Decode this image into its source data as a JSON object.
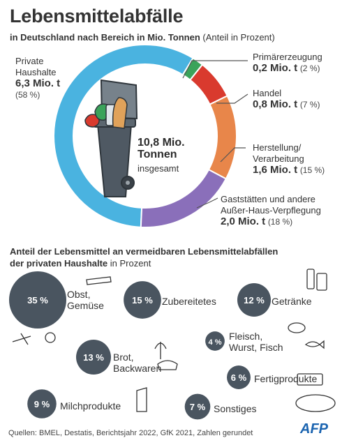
{
  "title": "Lebensmittelabfälle",
  "subtitle_bold": "in Deutschland nach Bereich in Mio. Tonnen",
  "subtitle_rest": " (Anteil in Prozent)",
  "center_value_1": "10,8 Mio.",
  "center_value_2": "Tonnen",
  "center_sub": "insgesamt",
  "section_title_bold": "Anteil der Lebensmittel an vermeidbaren Lebensmittelabfällen",
  "section_title_bold_2": "der privaten Haushalte",
  "section_title_rest": " in Prozent",
  "footer": "Quellen: BMEL, Destatis, Berichtsjahr 2022, GfK 2021, Zahlen gerundet",
  "logo": "AFP",
  "colors": {
    "private": "#4ab3e0",
    "primaer": "#3aa35a",
    "handel": "#d93a2e",
    "herstellung": "#e8864a",
    "gastro": "#8a6fba",
    "bubble": "#4a5560"
  },
  "chart_data": [
    {
      "type": "pie",
      "title": "Lebensmittelabfälle",
      "unit": "Mio. t",
      "total": 10.8,
      "segments": [
        {
          "name": "Private Haushalte",
          "value": 6.3,
          "value_label": "6,3 Mio. t",
          "share_label": "(58 %)",
          "share": 58
        },
        {
          "name": "Primärerzeugung",
          "value": 0.2,
          "value_label": "0,2 Mio. t",
          "share_label": "(2 %)",
          "share": 2
        },
        {
          "name": "Handel",
          "value": 0.8,
          "value_label": "0,8 Mio. t",
          "share_label": "(7 %)",
          "share": 7
        },
        {
          "name": "Herstellung/ Verarbeitung",
          "value": 1.6,
          "value_label": "1,6 Mio. t",
          "share_label": "(15 %)",
          "share": 15
        },
        {
          "name": "Gaststätten und andere Außer-Haus-Verpflegung",
          "value": 2.0,
          "value_label": "2,0 Mio. t",
          "share_label": "(18 %)",
          "share": 18
        }
      ]
    },
    {
      "type": "bubble",
      "title": "Anteil der Lebensmittel an vermeidbaren Lebensmittelabfällen der privaten Haushalte in Prozent",
      "unit": "%",
      "items": [
        {
          "name": "Obst, Gemüse",
          "value": 35,
          "label": "35 %"
        },
        {
          "name": "Zubereitetes",
          "value": 15,
          "label": "15 %"
        },
        {
          "name": "Getränke",
          "value": 12,
          "label": "12 %"
        },
        {
          "name": "Fleisch, Wurst, Fisch",
          "value": 4,
          "label": "4 %"
        },
        {
          "name": "Brot, Backwaren",
          "value": 13,
          "label": "13 %"
        },
        {
          "name": "Fertigprodukte",
          "value": 6,
          "label": "6 %"
        },
        {
          "name": "Milchprodukte",
          "value": 9,
          "label": "9 %"
        },
        {
          "name": "Sonstiges",
          "value": 7,
          "label": "7 %"
        }
      ]
    }
  ]
}
